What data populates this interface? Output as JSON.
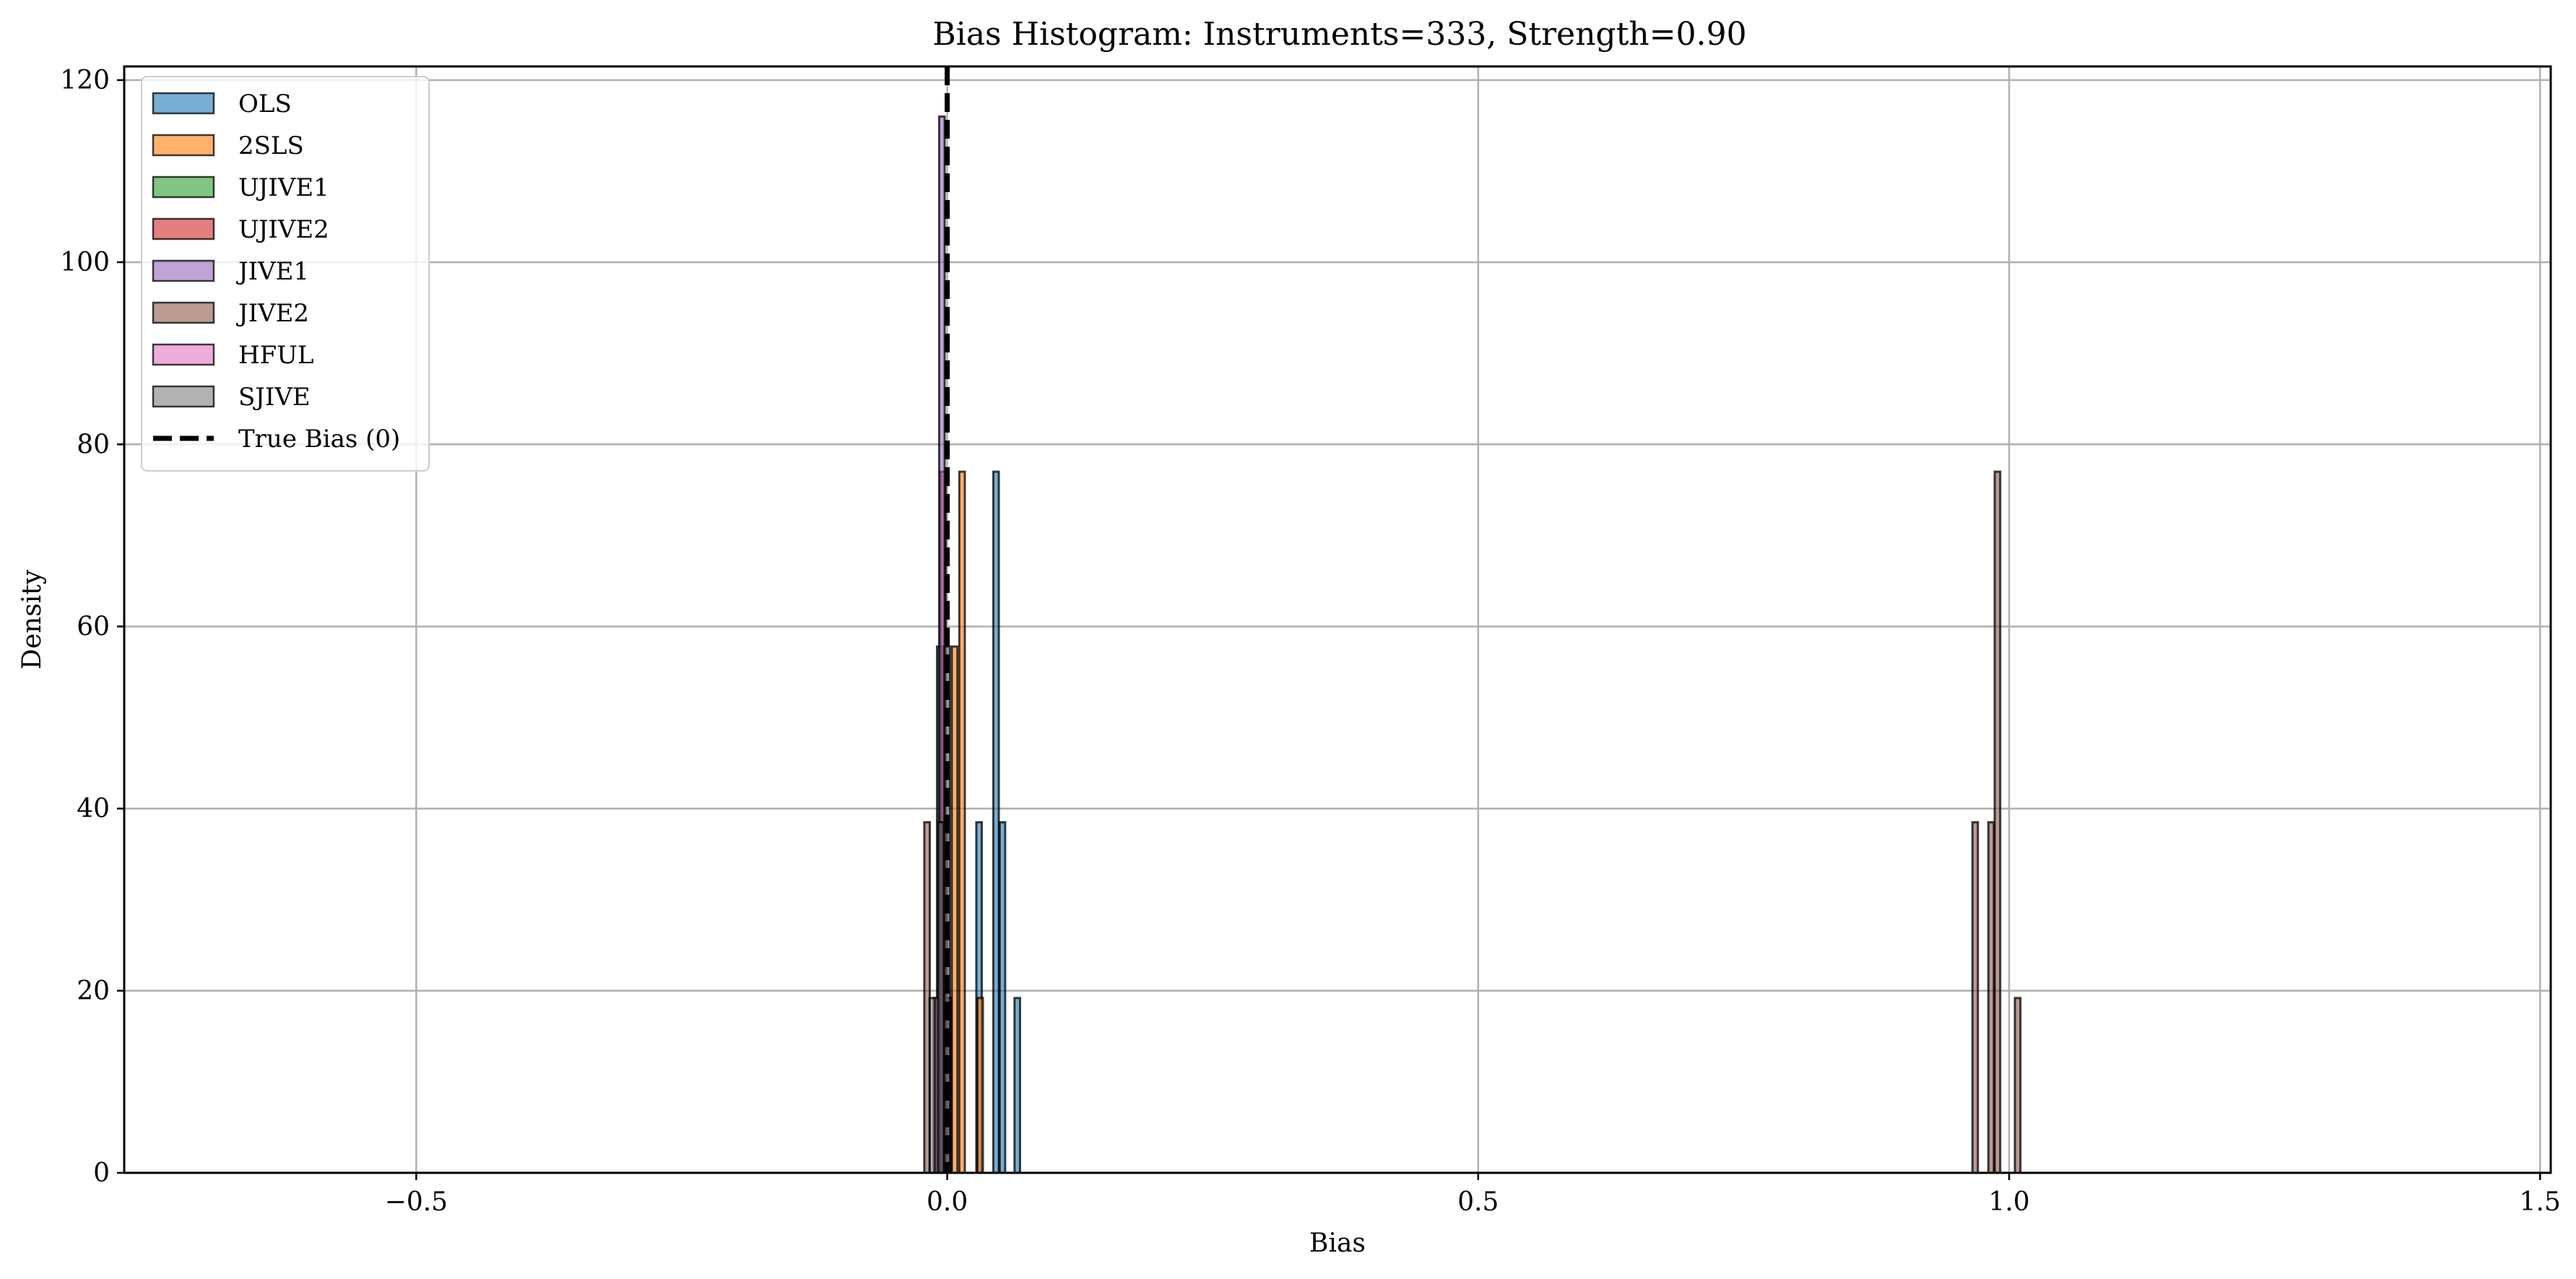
{
  "chart_data": {
    "type": "bar",
    "title": "Bias Histogram: Instruments=333, Strength=0.90",
    "xlabel": "Bias",
    "ylabel": "Density",
    "xlim": [
      -0.775,
      1.51
    ],
    "ylim": [
      0,
      121.5
    ],
    "xticks": [
      -0.5,
      0.0,
      0.5,
      1.0,
      1.5
    ],
    "xtick_labels": [
      "−0.5",
      "0.0",
      "0.5",
      "1.0",
      "1.5"
    ],
    "yticks": [
      0,
      20,
      40,
      60,
      80,
      100,
      120
    ],
    "ytick_labels": [
      "0",
      "20",
      "40",
      "60",
      "80",
      "100",
      "120"
    ],
    "grid": true,
    "legend_position": "top-left",
    "bin_width": 0.0052,
    "bar_alpha": 0.6,
    "series": [
      {
        "name": "OLS",
        "color": "#1f77b4",
        "x": [
          0.03,
          0.046,
          0.052,
          0.066
        ],
        "values": [
          38.5,
          77.0,
          38.5,
          19.2
        ]
      },
      {
        "name": "2SLS",
        "color": "#ff7f0e",
        "x": [
          0.007,
          0.014,
          0.031
        ],
        "values": [
          57.8,
          77.0,
          19.2
        ]
      },
      {
        "name": "UJIVE1",
        "color": "#2ca02c",
        "x": [
          -0.007,
          0.0
        ],
        "values": [
          57.8,
          19.2
        ]
      },
      {
        "name": "UJIVE2",
        "color": "#d62728",
        "x": [
          -0.004,
          0.001
        ],
        "values": [
          77.0,
          19.2
        ]
      },
      {
        "name": "JIVE1",
        "color": "#9467bd",
        "x": [
          -0.005,
          0.001
        ],
        "values": [
          116.0,
          19.2
        ]
      },
      {
        "name": "JIVE2",
        "color": "#8c564b",
        "x": [
          -0.019,
          0.968,
          0.983,
          0.989,
          1.008
        ],
        "values": [
          38.5,
          38.5,
          38.5,
          77.0,
          19.2
        ]
      },
      {
        "name": "HFUL",
        "color": "#e377c2",
        "x": [
          -0.01,
          -0.003
        ],
        "values": [
          19.2,
          38.5
        ]
      },
      {
        "name": "SJIVE",
        "color": "#7f7f7f",
        "x": [
          -0.014,
          -0.006,
          0.0
        ],
        "values": [
          19.2,
          38.5,
          57.8
        ]
      }
    ],
    "reference_line": {
      "label": "True Bias (0)",
      "x": 0,
      "style": "dashed",
      "color": "#000000"
    }
  }
}
